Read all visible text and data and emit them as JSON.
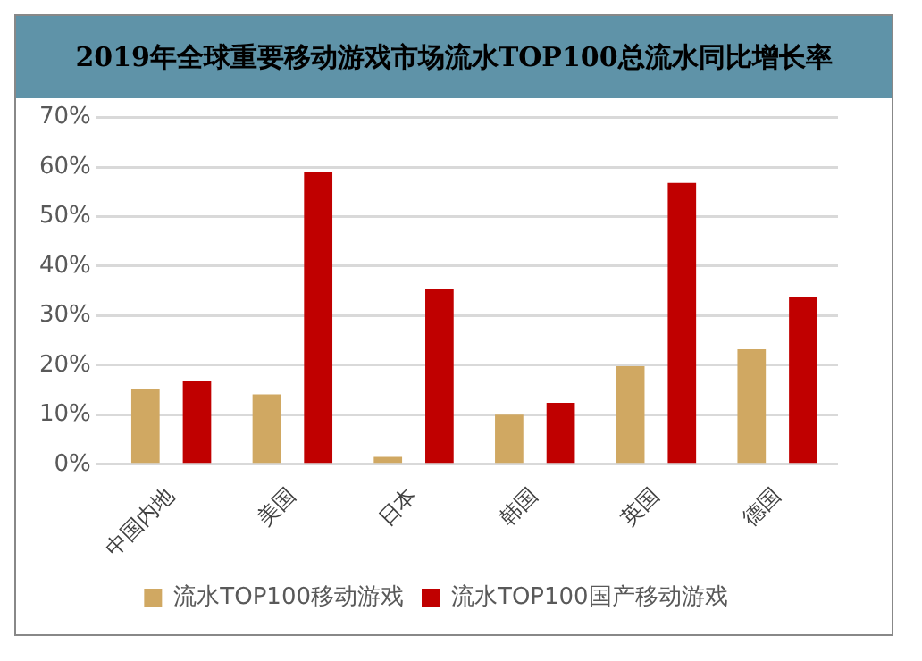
{
  "chart_data": {
    "type": "bar",
    "title": "2019年全球重要移动游戏市场流水TOP100总流水同比增长率",
    "categories": [
      "中国内地",
      "美国",
      "日本",
      "韩国",
      "英国",
      "德国"
    ],
    "series": [
      {
        "name": "流水TOP100移动游戏",
        "color": "#d0a862",
        "values": [
          15.2,
          14.1,
          1.5,
          10.0,
          19.8,
          23.2
        ]
      },
      {
        "name": "流水TOP100国产移动游戏",
        "color": "#c00000",
        "values": [
          16.9,
          59.1,
          35.3,
          12.4,
          56.8,
          33.8
        ]
      }
    ],
    "ylim": [
      0,
      70
    ],
    "yticks": [
      {
        "value": 0,
        "label": "0%"
      },
      {
        "value": 10,
        "label": "10%"
      },
      {
        "value": 20,
        "label": "20%"
      },
      {
        "value": 30,
        "label": "30%"
      },
      {
        "value": 40,
        "label": "40%"
      },
      {
        "value": 50,
        "label": "50%"
      },
      {
        "value": 60,
        "label": "60%"
      },
      {
        "value": 70,
        "label": "70%"
      }
    ],
    "grid": "y",
    "legend": "bottom"
  }
}
